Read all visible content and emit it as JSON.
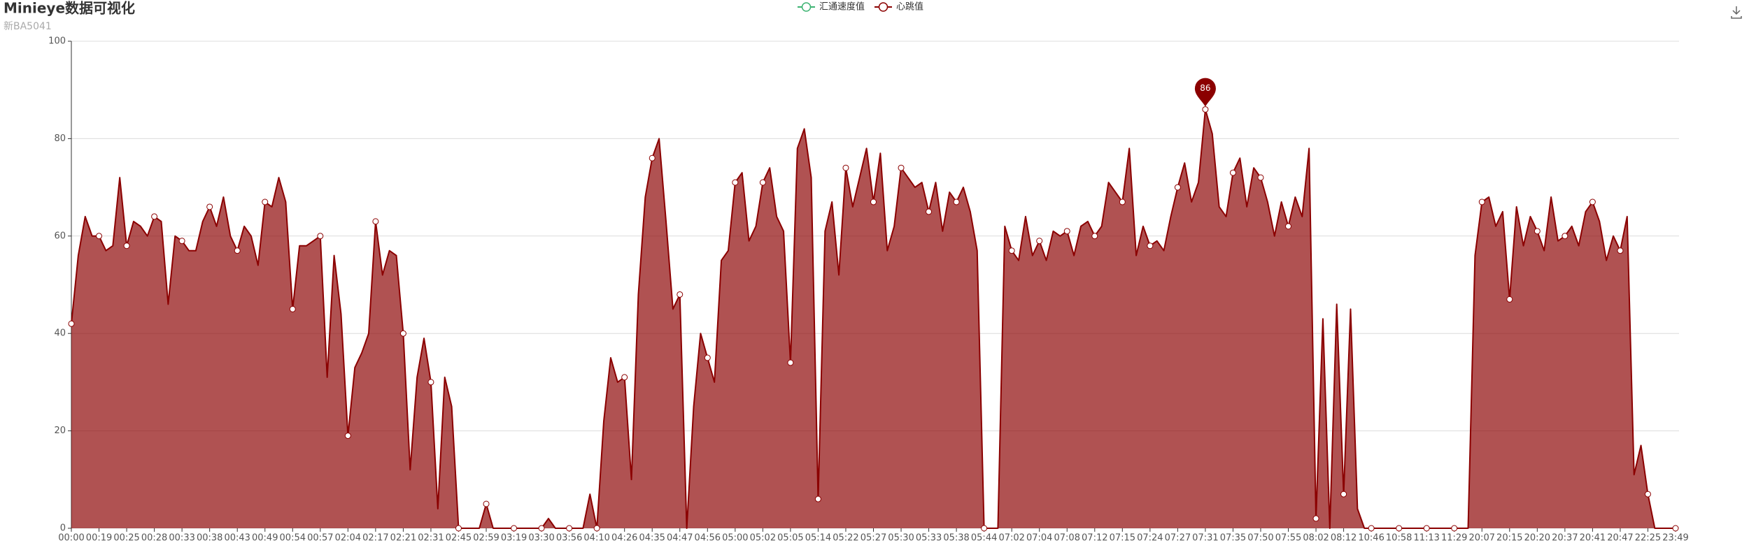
{
  "chart_data": {
    "type": "area",
    "title": "Minieye数据可视化",
    "subtitle": "新BA5041",
    "ylim": [
      0,
      100
    ],
    "yticks": [
      0,
      20,
      40,
      60,
      80,
      100
    ],
    "grid": true,
    "legend": "top",
    "categories": [
      "00:00",
      null,
      null,
      null,
      "00:19",
      null,
      null,
      null,
      "00:25",
      null,
      null,
      null,
      "00:28",
      null,
      null,
      null,
      "00:33",
      null,
      null,
      null,
      "00:38",
      null,
      null,
      null,
      "00:43",
      null,
      null,
      null,
      "00:49",
      null,
      null,
      null,
      "00:54",
      null,
      null,
      null,
      "00:57",
      null,
      null,
      null,
      "02:04",
      null,
      null,
      null,
      "02:17",
      null,
      null,
      null,
      "02:21",
      null,
      null,
      null,
      "02:31",
      null,
      null,
      null,
      "02:45",
      null,
      null,
      null,
      "02:59",
      null,
      null,
      null,
      "03:19",
      null,
      null,
      null,
      "03:30",
      null,
      null,
      null,
      "03:56",
      null,
      null,
      null,
      "04:10",
      null,
      null,
      null,
      "04:26",
      null,
      null,
      null,
      "04:35",
      null,
      null,
      null,
      "04:47",
      null,
      null,
      null,
      "04:56",
      null,
      null,
      null,
      "05:00",
      null,
      null,
      null,
      "05:02",
      null,
      null,
      null,
      "05:05",
      null,
      null,
      null,
      "05:14",
      null,
      null,
      null,
      "05:22",
      null,
      null,
      null,
      "05:27",
      null,
      null,
      null,
      "05:30",
      null,
      null,
      null,
      "05:33",
      null,
      null,
      null,
      "05:38",
      null,
      null,
      null,
      "05:44",
      null,
      null,
      null,
      "07:02",
      null,
      null,
      null,
      "07:04",
      null,
      null,
      null,
      "07:08",
      null,
      null,
      null,
      "07:12",
      null,
      null,
      null,
      "07:15",
      null,
      null,
      null,
      "07:24",
      null,
      null,
      null,
      "07:27",
      null,
      null,
      null,
      "07:31",
      null,
      null,
      null,
      "07:35",
      null,
      null,
      null,
      "07:50",
      null,
      null,
      null,
      "07:55",
      null,
      null,
      null,
      "08:02",
      null,
      null,
      null,
      "08:12",
      null,
      null,
      null,
      "10:46",
      null,
      null,
      null,
      "10:58",
      null,
      null,
      null,
      "11:13",
      null,
      null,
      null,
      "11:29",
      null,
      null,
      null,
      "20:07",
      null,
      null,
      null,
      "20:15",
      null,
      null,
      null,
      "20:20",
      null,
      null,
      null,
      "20:37",
      null,
      null,
      null,
      "20:41",
      null,
      null,
      null,
      "20:47",
      null,
      null,
      null,
      "22:25",
      null,
      null,
      null,
      "23:49"
    ],
    "series": [
      {
        "name": "汇通速度值",
        "color": "#3cb371",
        "values": [
          null,
          null,
          null,
          null,
          null,
          null,
          null,
          null,
          null,
          null,
          null,
          null,
          null,
          null,
          null,
          null,
          null,
          null,
          null,
          null,
          null,
          null,
          null,
          null,
          null,
          null,
          null,
          null,
          null,
          null,
          null,
          null,
          null,
          null,
          null,
          null,
          null,
          null,
          null,
          null,
          null,
          null,
          null,
          null,
          null,
          null,
          null,
          null,
          null,
          null,
          null,
          null,
          null,
          null,
          null,
          null,
          null,
          null,
          null,
          null,
          null,
          null,
          null,
          null,
          null,
          null,
          null,
          null,
          null,
          null,
          null,
          null,
          null,
          null,
          null,
          null,
          null,
          null,
          null,
          null,
          null,
          null,
          null,
          null,
          null,
          null,
          null,
          null,
          null,
          null,
          null,
          null,
          null,
          null,
          null,
          null,
          null,
          null,
          null,
          null,
          null,
          null,
          null,
          null,
          null,
          null,
          null,
          null,
          null,
          null,
          null,
          null,
          null,
          null,
          null,
          null,
          null,
          null,
          null,
          null,
          null,
          null,
          null,
          null,
          null,
          null,
          null,
          null,
          null,
          null,
          null,
          null,
          null,
          null,
          null,
          null,
          null,
          null,
          null,
          null,
          null,
          null,
          null,
          null,
          null,
          null,
          null,
          null,
          null,
          null,
          null,
          null,
          null,
          null,
          null,
          null,
          null,
          null,
          null,
          null,
          null,
          null,
          null,
          null,
          null,
          null,
          null,
          null,
          null,
          null,
          null,
          null,
          null,
          null,
          null,
          null,
          null,
          null,
          null,
          null,
          null,
          null,
          null,
          null,
          null,
          null,
          null,
          null,
          null,
          null,
          null,
          null,
          null,
          null,
          null,
          null,
          null,
          null,
          null,
          null,
          null,
          null,
          null,
          null,
          null,
          null,
          null,
          null,
          null,
          null,
          null,
          null,
          null,
          null,
          null,
          null,
          null,
          null,
          null,
          null,
          null,
          null,
          null,
          null,
          null,
          null,
          null,
          null,
          null,
          null,
          null,
          null,
          null
        ]
      },
      {
        "name": "心跳值",
        "color": "#8b0000",
        "values": [
          42,
          56,
          64,
          60,
          60,
          57,
          58,
          72,
          58,
          63,
          62,
          60,
          64,
          63,
          46,
          60,
          59,
          57,
          57,
          63,
          66,
          62,
          68,
          60,
          57,
          62,
          60,
          54,
          67,
          66,
          72,
          67,
          45,
          58,
          58,
          59,
          60,
          31,
          56,
          44,
          19,
          33,
          36,
          40,
          63,
          52,
          57,
          56,
          40,
          12,
          31,
          39,
          30,
          4,
          31,
          25,
          0,
          0,
          0,
          0,
          5,
          0,
          0,
          0,
          0,
          0,
          0,
          0,
          0,
          2,
          0,
          0,
          0,
          0,
          0,
          7,
          0,
          22,
          35,
          30,
          31,
          10,
          48,
          68,
          76,
          80,
          63,
          45,
          48,
          0,
          25,
          40,
          35,
          30,
          55,
          57,
          71,
          73,
          59,
          62,
          71,
          74,
          64,
          61,
          34,
          78,
          82,
          72,
          6,
          61,
          67,
          52,
          74,
          66,
          72,
          78,
          67,
          77,
          57,
          62,
          74,
          72,
          70,
          71,
          65,
          71,
          61,
          69,
          67,
          70,
          65,
          57,
          0,
          0,
          0,
          62,
          57,
          55,
          64,
          56,
          59,
          55,
          61,
          60,
          61,
          56,
          62,
          63,
          60,
          62,
          71,
          69,
          67,
          78,
          56,
          62,
          58,
          59,
          57,
          64,
          70,
          75,
          67,
          71,
          86,
          81,
          66,
          64,
          73,
          76,
          66,
          74,
          72,
          67,
          60,
          67,
          62,
          68,
          64,
          78,
          2,
          43,
          0,
          46,
          7,
          45,
          4,
          0,
          0,
          0,
          0,
          0,
          0,
          0,
          0,
          0,
          0,
          0,
          0,
          0,
          0,
          0,
          0,
          56,
          67,
          68,
          62,
          65,
          47,
          66,
          58,
          64,
          61,
          57,
          68,
          59,
          60,
          62,
          58,
          65,
          67,
          63,
          55,
          60,
          57,
          64,
          11,
          17,
          7,
          0,
          0,
          0,
          0
        ]
      }
    ]
  }
}
